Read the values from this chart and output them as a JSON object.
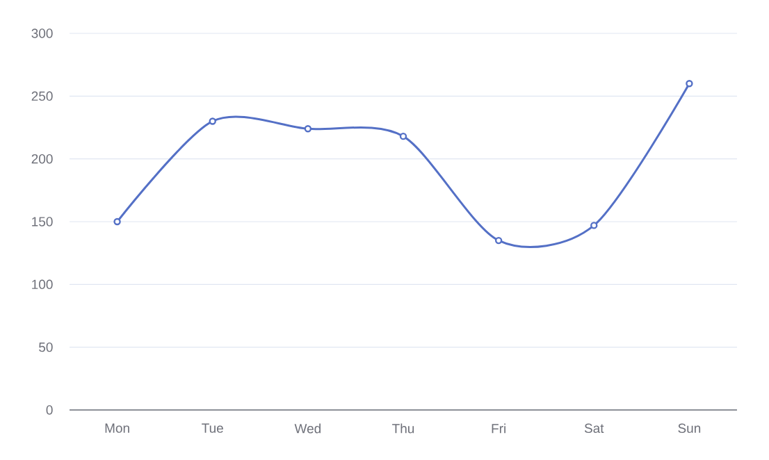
{
  "chart_data": {
    "type": "line",
    "categories": [
      "Mon",
      "Tue",
      "Wed",
      "Thu",
      "Fri",
      "Sat",
      "Sun"
    ],
    "values": [
      150,
      230,
      224,
      218,
      135,
      147,
      260
    ],
    "color": "#5470c6",
    "ylim": [
      0,
      300
    ],
    "yticks": [
      0,
      50,
      100,
      150,
      200,
      250,
      300
    ],
    "grid": "y",
    "marker": "circle",
    "line_style": "solid"
  }
}
